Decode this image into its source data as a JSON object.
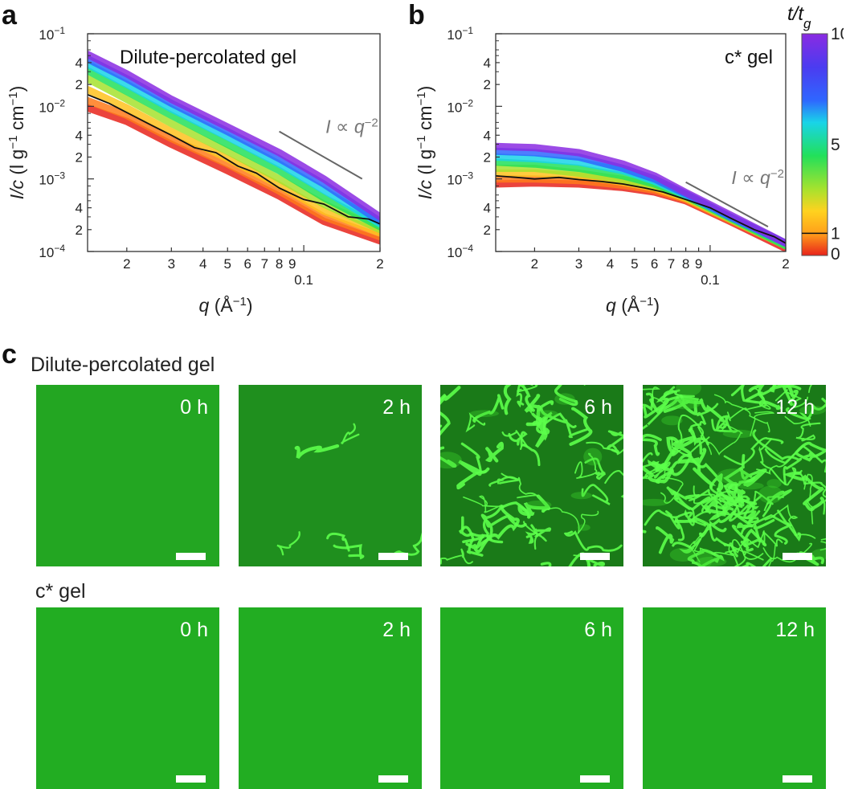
{
  "panels": {
    "a": {
      "letter": "a"
    },
    "b": {
      "letter": "b"
    },
    "c": {
      "letter": "c"
    }
  },
  "chart_data": [
    {
      "type": "line",
      "panel": "a",
      "title": "Dilute-percolated gel",
      "xlabel": "q (Å⁻¹)",
      "ylabel": "I/c (l g⁻¹ cm⁻¹)",
      "x_scale": "log",
      "y_scale": "log",
      "xlim": [
        0.014,
        0.2
      ],
      "ylim": [
        0.0001,
        0.1
      ],
      "x_ticks": [
        "2",
        "3",
        "4",
        "5",
        "6",
        "7",
        "8",
        "9",
        "0.1",
        "2"
      ],
      "y_ticks": [
        "10⁻¹",
        "4",
        "2",
        "10⁻²",
        "4",
        "2",
        "10⁻³",
        "4",
        "2",
        "10⁻⁴"
      ],
      "annotation": "I ∝ q⁻²",
      "colorbar_variable": "t/t_g",
      "series": [
        {
          "t_over_tg": 10,
          "color": "#8a2be2",
          "points": [
            [
              0.014,
              0.052
            ],
            [
              0.02,
              0.028
            ],
            [
              0.03,
              0.0125
            ],
            [
              0.05,
              0.0052
            ],
            [
              0.08,
              0.0023
            ],
            [
              0.12,
              0.001
            ],
            [
              0.2,
              0.0003
            ]
          ]
        },
        {
          "t_over_tg": 6,
          "color": "#2f66ff",
          "points": [
            [
              0.014,
              0.045
            ],
            [
              0.02,
              0.024
            ],
            [
              0.03,
              0.011
            ],
            [
              0.05,
              0.0045
            ],
            [
              0.08,
              0.0019
            ],
            [
              0.12,
              0.00085
            ],
            [
              0.2,
              0.00026
            ]
          ]
        },
        {
          "t_over_tg": 4,
          "color": "#19d4e8",
          "points": [
            [
              0.014,
              0.038
            ],
            [
              0.02,
              0.02
            ],
            [
              0.03,
              0.0092
            ],
            [
              0.05,
              0.0038
            ],
            [
              0.08,
              0.0016
            ],
            [
              0.12,
              0.0007
            ],
            [
              0.2,
              0.00024
            ]
          ]
        },
        {
          "t_over_tg": 3,
          "color": "#22e05a",
          "points": [
            [
              0.014,
              0.031
            ],
            [
              0.02,
              0.016
            ],
            [
              0.03,
              0.0075
            ],
            [
              0.05,
              0.003
            ],
            [
              0.08,
              0.0013
            ],
            [
              0.12,
              0.00055
            ],
            [
              0.2,
              0.00022
            ]
          ]
        },
        {
          "t_over_tg": 2,
          "color": "#a6e22e",
          "points": [
            [
              0.014,
              0.024
            ],
            [
              0.02,
              0.0125
            ],
            [
              0.03,
              0.0058
            ],
            [
              0.05,
              0.0024
            ],
            [
              0.08,
              0.001
            ],
            [
              0.12,
              0.00045
            ],
            [
              0.2,
              0.0002
            ]
          ]
        },
        {
          "t_over_tg": 1.5,
          "color": "#ffc21f",
          "points": [
            [
              0.014,
              0.017
            ],
            [
              0.02,
              0.0095
            ],
            [
              0.03,
              0.0045
            ],
            [
              0.05,
              0.0019
            ],
            [
              0.08,
              0.00082
            ],
            [
              0.12,
              0.00036
            ],
            [
              0.2,
              0.00018
            ]
          ]
        },
        {
          "t_over_tg": 0.5,
          "color": "#ff7a1a",
          "points": [
            [
              0.014,
              0.012
            ],
            [
              0.02,
              0.0075
            ],
            [
              0.03,
              0.0036
            ],
            [
              0.05,
              0.0016
            ],
            [
              0.08,
              0.00068
            ],
            [
              0.12,
              0.0003
            ],
            [
              0.2,
              0.00016
            ]
          ]
        },
        {
          "t_over_tg": 0,
          "color": "#e8231b",
          "points": [
            [
              0.014,
              0.0095
            ],
            [
              0.02,
              0.0062
            ],
            [
              0.03,
              0.003
            ],
            [
              0.05,
              0.0013
            ],
            [
              0.08,
              0.00058
            ],
            [
              0.12,
              0.00026
            ],
            [
              0.2,
              0.00014
            ]
          ]
        },
        {
          "t_over_tg": 1,
          "color": "#111111",
          "points": [
            [
              0.014,
              0.0145
            ],
            [
              0.017,
              0.011
            ],
            [
              0.02,
              0.0082
            ],
            [
              0.025,
              0.0055
            ],
            [
              0.03,
              0.004
            ],
            [
              0.037,
              0.0027
            ],
            [
              0.045,
              0.0023
            ],
            [
              0.055,
              0.0015
            ],
            [
              0.065,
              0.0012
            ],
            [
              0.08,
              0.00075
            ],
            [
              0.1,
              0.00052
            ],
            [
              0.12,
              0.00045
            ],
            [
              0.15,
              0.0003
            ],
            [
              0.18,
              0.00028
            ],
            [
              0.2,
              0.00024
            ]
          ]
        }
      ],
      "guide_line": {
        "x": [
          0.08,
          0.17
        ],
        "y": [
          0.0045,
          0.001
        ]
      }
    },
    {
      "type": "line",
      "panel": "b",
      "title": "c* gel",
      "xlabel": "q (Å⁻¹)",
      "ylabel": "I/c (l g⁻¹ cm⁻¹)",
      "x_scale": "log",
      "y_scale": "log",
      "xlim": [
        0.014,
        0.2
      ],
      "ylim": [
        0.0001,
        0.1
      ],
      "x_ticks": [
        "2",
        "3",
        "4",
        "5",
        "6",
        "7",
        "8",
        "9",
        "0.1",
        "2"
      ],
      "y_ticks": [
        "10⁻¹",
        "4",
        "2",
        "10⁻²",
        "4",
        "2",
        "10⁻³",
        "4",
        "2",
        "10⁻⁴"
      ],
      "annotation": "I ∝ q⁻²",
      "colorbar_variable": "t/t_g",
      "series": [
        {
          "t_over_tg": 10,
          "color": "#8a2be2",
          "points": [
            [
              0.014,
              0.0028
            ],
            [
              0.02,
              0.0027
            ],
            [
              0.03,
              0.0023
            ],
            [
              0.045,
              0.0016
            ],
            [
              0.06,
              0.0011
            ],
            [
              0.08,
              0.00065
            ],
            [
              0.12,
              0.00032
            ],
            [
              0.2,
              0.00013
            ]
          ]
        },
        {
          "t_over_tg": 6,
          "color": "#2f66ff",
          "points": [
            [
              0.014,
              0.0024
            ],
            [
              0.02,
              0.0023
            ],
            [
              0.03,
              0.002
            ],
            [
              0.045,
              0.0014
            ],
            [
              0.06,
              0.001
            ],
            [
              0.08,
              0.00062
            ],
            [
              0.12,
              0.0003
            ],
            [
              0.2,
              0.00013
            ]
          ]
        },
        {
          "t_over_tg": 4,
          "color": "#19d4e8",
          "points": [
            [
              0.014,
              0.002
            ],
            [
              0.02,
              0.0019
            ],
            [
              0.03,
              0.0017
            ],
            [
              0.045,
              0.0013
            ],
            [
              0.06,
              0.00093
            ],
            [
              0.08,
              0.0006
            ],
            [
              0.12,
              0.0003
            ],
            [
              0.2,
              0.00013
            ]
          ]
        },
        {
          "t_over_tg": 3,
          "color": "#22e05a",
          "points": [
            [
              0.014,
              0.0017
            ],
            [
              0.02,
              0.0016
            ],
            [
              0.03,
              0.0014
            ],
            [
              0.045,
              0.0011
            ],
            [
              0.06,
              0.00085
            ],
            [
              0.08,
              0.00058
            ],
            [
              0.12,
              0.00029
            ],
            [
              0.2,
              0.00012
            ]
          ]
        },
        {
          "t_over_tg": 2,
          "color": "#a6e22e",
          "points": [
            [
              0.014,
              0.0014
            ],
            [
              0.02,
              0.0014
            ],
            [
              0.03,
              0.0012
            ],
            [
              0.045,
              0.00098
            ],
            [
              0.06,
              0.0008
            ],
            [
              0.08,
              0.00056
            ],
            [
              0.12,
              0.00028
            ],
            [
              0.2,
              0.00012
            ]
          ]
        },
        {
          "t_over_tg": 1.5,
          "color": "#ffc21f",
          "points": [
            [
              0.014,
              0.0012
            ],
            [
              0.02,
              0.0012
            ],
            [
              0.03,
              0.0011
            ],
            [
              0.045,
              0.0009
            ],
            [
              0.06,
              0.00075
            ],
            [
              0.08,
              0.00054
            ],
            [
              0.12,
              0.00028
            ],
            [
              0.2,
              0.00012
            ]
          ]
        },
        {
          "t_over_tg": 0.5,
          "color": "#ff7a1a",
          "points": [
            [
              0.014,
              0.001
            ],
            [
              0.02,
              0.001
            ],
            [
              0.03,
              0.00095
            ],
            [
              0.045,
              0.00082
            ],
            [
              0.06,
              0.0007
            ],
            [
              0.08,
              0.00052
            ],
            [
              0.12,
              0.00027
            ],
            [
              0.2,
              0.00012
            ]
          ]
        },
        {
          "t_over_tg": 0,
          "color": "#e8231b",
          "points": [
            [
              0.014,
              0.00085
            ],
            [
              0.02,
              0.00088
            ],
            [
              0.03,
              0.00085
            ],
            [
              0.045,
              0.00076
            ],
            [
              0.06,
              0.00066
            ],
            [
              0.08,
              0.0005
            ],
            [
              0.12,
              0.00026
            ],
            [
              0.2,
              0.00011
            ]
          ]
        },
        {
          "t_over_tg": 1,
          "color": "#111111",
          "points": [
            [
              0.014,
              0.0011
            ],
            [
              0.017,
              0.00105
            ],
            [
              0.02,
              0.001
            ],
            [
              0.025,
              0.00105
            ],
            [
              0.03,
              0.00098
            ],
            [
              0.037,
              0.00092
            ],
            [
              0.045,
              0.00085
            ],
            [
              0.055,
              0.00075
            ],
            [
              0.065,
              0.00066
            ],
            [
              0.08,
              0.00052
            ],
            [
              0.1,
              0.0004
            ],
            [
              0.12,
              0.00029
            ],
            [
              0.15,
              0.0002
            ],
            [
              0.18,
              0.00016
            ],
            [
              0.2,
              0.00013
            ]
          ]
        }
      ],
      "guide_line": {
        "x": [
          0.08,
          0.17
        ],
        "y": [
          0.0009,
          0.00022
        ]
      }
    }
  ],
  "colorbar": {
    "label": "t/t",
    "label_sub": "g",
    "ticks": [
      {
        "value": 10,
        "label": "10"
      },
      {
        "value": 5,
        "label": "5"
      },
      {
        "value": 1,
        "label": "1"
      },
      {
        "value": 0,
        "label": "0"
      }
    ],
    "stops": [
      {
        "value": 10,
        "color": "#8a2be2"
      },
      {
        "value": 8.5,
        "color": "#4b3cf0"
      },
      {
        "value": 7,
        "color": "#2f66ff"
      },
      {
        "value": 6,
        "color": "#19d4e8"
      },
      {
        "value": 4.5,
        "color": "#22e05a"
      },
      {
        "value": 3,
        "color": "#a6e22e"
      },
      {
        "value": 2,
        "color": "#ffd21f"
      },
      {
        "value": 1,
        "color": "#ffa01a"
      },
      {
        "value": 0,
        "color": "#e8231b"
      }
    ]
  },
  "microscopy": {
    "rows": [
      {
        "label": "Dilute-percolated gel",
        "network": true,
        "tiles": [
          {
            "time": "0 h",
            "network_level": 0
          },
          {
            "time": "2 h",
            "network_level": 1
          },
          {
            "time": "6 h",
            "network_level": 2
          },
          {
            "time": "12 h",
            "network_level": 3
          }
        ]
      },
      {
        "label": "c* gel",
        "network": false,
        "tiles": [
          {
            "time": "0 h",
            "network_level": 0
          },
          {
            "time": "2 h",
            "network_level": 0
          },
          {
            "time": "6 h",
            "network_level": 0
          },
          {
            "time": "12 h",
            "network_level": 0
          }
        ]
      }
    ]
  }
}
